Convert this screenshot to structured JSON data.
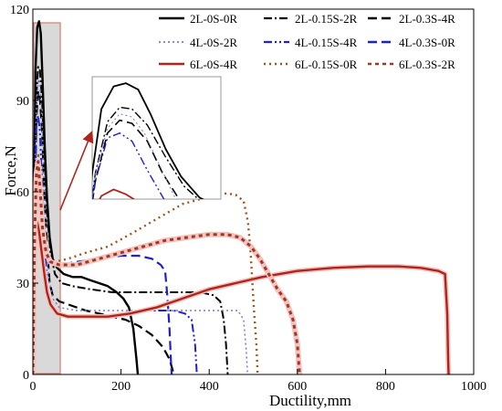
{
  "chart_data": {
    "type": "line",
    "xlabel": "Ductility,mm",
    "ylabel": "Force,N",
    "xlim": [
      0,
      1000
    ],
    "ylim": [
      0,
      120
    ],
    "xticks": [
      "0",
      "200",
      "400",
      "600",
      "800",
      "1000"
    ],
    "yticks": [
      "0",
      "30",
      "60",
      "90",
      "120"
    ],
    "grid": false,
    "legend_position": "top-right",
    "series": [
      {
        "name": "2L-0S-0R",
        "color": "#000000",
        "dash": "solid",
        "width": 2.4,
        "points": [
          [
            0,
            0
          ],
          [
            3,
            60
          ],
          [
            6,
            100
          ],
          [
            10,
            114
          ],
          [
            14,
            116
          ],
          [
            18,
            112
          ],
          [
            22,
            97
          ],
          [
            27,
            75
          ],
          [
            32,
            58
          ],
          [
            38,
            45
          ],
          [
            45,
            38
          ],
          [
            55,
            35
          ],
          [
            70,
            33
          ],
          [
            90,
            32
          ],
          [
            110,
            32
          ],
          [
            130,
            31
          ],
          [
            150,
            30
          ],
          [
            170,
            29
          ],
          [
            190,
            27
          ],
          [
            205,
            25
          ],
          [
            218,
            22
          ],
          [
            228,
            15
          ],
          [
            235,
            5
          ],
          [
            238,
            0
          ]
        ]
      },
      {
        "name": "2L-0.15S-2R",
        "color": "#000000",
        "dash": "9,3,2,3",
        "width": 2,
        "points": [
          [
            0,
            0
          ],
          [
            4,
            60
          ],
          [
            8,
            92
          ],
          [
            12,
            101
          ],
          [
            16,
            100
          ],
          [
            21,
            90
          ],
          [
            27,
            70
          ],
          [
            33,
            52
          ],
          [
            40,
            40
          ],
          [
            50,
            33
          ],
          [
            65,
            30
          ],
          [
            90,
            29
          ],
          [
            130,
            28
          ],
          [
            180,
            27
          ],
          [
            230,
            27
          ],
          [
            280,
            27
          ],
          [
            330,
            27
          ],
          [
            380,
            27
          ],
          [
            410,
            26
          ],
          [
            425,
            24
          ],
          [
            433,
            18
          ],
          [
            438,
            10
          ],
          [
            442,
            0
          ]
        ]
      },
      {
        "name": "2L-0.3S-4R",
        "color": "#000000",
        "dash": "10,5",
        "width": 2.2,
        "points": [
          [
            0,
            0
          ],
          [
            4,
            55
          ],
          [
            8,
            85
          ],
          [
            12,
            93
          ],
          [
            16,
            91
          ],
          [
            21,
            80
          ],
          [
            26,
            60
          ],
          [
            32,
            42
          ],
          [
            38,
            30
          ],
          [
            45,
            26
          ],
          [
            60,
            24
          ],
          [
            80,
            23
          ],
          [
            100,
            22
          ],
          [
            120,
            21
          ],
          [
            150,
            20
          ],
          [
            180,
            19
          ],
          [
            210,
            18
          ],
          [
            240,
            16
          ],
          [
            270,
            13
          ],
          [
            295,
            9
          ],
          [
            310,
            5
          ],
          [
            320,
            0
          ]
        ]
      },
      {
        "name": "4L-0S-2R",
        "color": "#7a7ad0",
        "dash": "2,3",
        "width": 1.5,
        "points": [
          [
            0,
            0
          ],
          [
            4,
            60
          ],
          [
            8,
            88
          ],
          [
            12,
            97
          ],
          [
            16,
            95
          ],
          [
            20,
            85
          ],
          [
            25,
            65
          ],
          [
            30,
            45
          ],
          [
            36,
            32
          ],
          [
            45,
            25
          ],
          [
            60,
            22
          ],
          [
            100,
            21
          ],
          [
            150,
            21
          ],
          [
            200,
            21
          ],
          [
            250,
            21
          ],
          [
            300,
            21
          ],
          [
            350,
            21
          ],
          [
            400,
            21
          ],
          [
            440,
            21
          ],
          [
            465,
            21
          ],
          [
            478,
            18
          ],
          [
            484,
            8
          ],
          [
            487,
            0
          ]
        ]
      },
      {
        "name": "4L-0.15S-4R",
        "color": "#1f1fd6",
        "dash": "9,3,2,3,2,3",
        "width": 2,
        "points": [
          [
            0,
            0
          ],
          [
            4,
            55
          ],
          [
            8,
            82
          ],
          [
            12,
            85
          ],
          [
            16,
            80
          ],
          [
            21,
            62
          ],
          [
            27,
            42
          ],
          [
            33,
            28
          ],
          [
            40,
            22
          ],
          [
            55,
            20
          ],
          [
            80,
            19
          ],
          [
            120,
            19
          ],
          [
            160,
            19
          ],
          [
            200,
            20
          ],
          [
            240,
            21
          ],
          [
            280,
            21
          ],
          [
            320,
            21
          ],
          [
            345,
            20
          ],
          [
            360,
            18
          ],
          [
            368,
            10
          ],
          [
            372,
            0
          ]
        ]
      },
      {
        "name": "4L-0.3S-0R",
        "color": "#1f1fd6",
        "dash": "10,5",
        "width": 2.2,
        "points": [
          [
            0,
            0
          ],
          [
            4,
            45
          ],
          [
            8,
            66
          ],
          [
            12,
            70
          ],
          [
            16,
            62
          ],
          [
            21,
            48
          ],
          [
            28,
            40
          ],
          [
            40,
            37
          ],
          [
            60,
            36
          ],
          [
            100,
            37
          ],
          [
            150,
            38
          ],
          [
            200,
            39
          ],
          [
            240,
            39
          ],
          [
            270,
            38
          ],
          [
            290,
            36
          ],
          [
            300,
            34
          ],
          [
            305,
            26
          ],
          [
            310,
            15
          ],
          [
            313,
            5
          ],
          [
            315,
            0
          ]
        ]
      },
      {
        "name": "6L-0S-4R",
        "color": "#b0241b",
        "dash": "solid",
        "width": 2.4,
        "halo": true,
        "points": [
          [
            0,
            0
          ],
          [
            3,
            35
          ],
          [
            6,
            46
          ],
          [
            10,
            50
          ],
          [
            14,
            47
          ],
          [
            20,
            40
          ],
          [
            26,
            33
          ],
          [
            32,
            27
          ],
          [
            40,
            23
          ],
          [
            55,
            20
          ],
          [
            80,
            19
          ],
          [
            120,
            19
          ],
          [
            170,
            19
          ],
          [
            220,
            20
          ],
          [
            280,
            22
          ],
          [
            340,
            25
          ],
          [
            400,
            28
          ],
          [
            460,
            30
          ],
          [
            520,
            32
          ],
          [
            600,
            34
          ],
          [
            680,
            35
          ],
          [
            760,
            35.5
          ],
          [
            830,
            35.5
          ],
          [
            880,
            35
          ],
          [
            920,
            34
          ],
          [
            935,
            33
          ],
          [
            940,
            20
          ],
          [
            942,
            5
          ],
          [
            943,
            0
          ]
        ]
      },
      {
        "name": "6L-0.15S-0R",
        "color": "#9a5522",
        "dash": "2,4",
        "width": 2.4,
        "points": [
          [
            0,
            0
          ],
          [
            4,
            45
          ],
          [
            8,
            66
          ],
          [
            12,
            72
          ],
          [
            16,
            66
          ],
          [
            21,
            52
          ],
          [
            28,
            42
          ],
          [
            36,
            38
          ],
          [
            50,
            37
          ],
          [
            80,
            38
          ],
          [
            120,
            40
          ],
          [
            170,
            42
          ],
          [
            220,
            46
          ],
          [
            280,
            51
          ],
          [
            340,
            56
          ],
          [
            390,
            58
          ],
          [
            420,
            59
          ],
          [
            440,
            59.5
          ],
          [
            460,
            59
          ],
          [
            478,
            57
          ],
          [
            488,
            50
          ],
          [
            494,
            40
          ],
          [
            498,
            30
          ],
          [
            502,
            20
          ],
          [
            507,
            10
          ],
          [
            510,
            0
          ]
        ]
      },
      {
        "name": "6L-0.3S-2R",
        "color": "#a33523",
        "dash": "4,4",
        "width": 3,
        "halo": true,
        "points": [
          [
            0,
            0
          ],
          [
            4,
            45
          ],
          [
            8,
            66
          ],
          [
            12,
            70
          ],
          [
            16,
            62
          ],
          [
            22,
            48
          ],
          [
            30,
            40
          ],
          [
            40,
            37
          ],
          [
            60,
            36
          ],
          [
            100,
            36
          ],
          [
            150,
            38
          ],
          [
            200,
            40
          ],
          [
            250,
            42
          ],
          [
            300,
            44
          ],
          [
            350,
            45
          ],
          [
            400,
            46
          ],
          [
            440,
            46
          ],
          [
            470,
            45
          ],
          [
            495,
            42
          ],
          [
            515,
            38
          ],
          [
            535,
            33
          ],
          [
            555,
            28
          ],
          [
            575,
            24
          ],
          [
            590,
            18
          ],
          [
            600,
            10
          ],
          [
            605,
            0
          ]
        ]
      }
    ],
    "shaded_region_x": [
      0,
      60
    ],
    "inset": {
      "note_arrow": true
    }
  }
}
